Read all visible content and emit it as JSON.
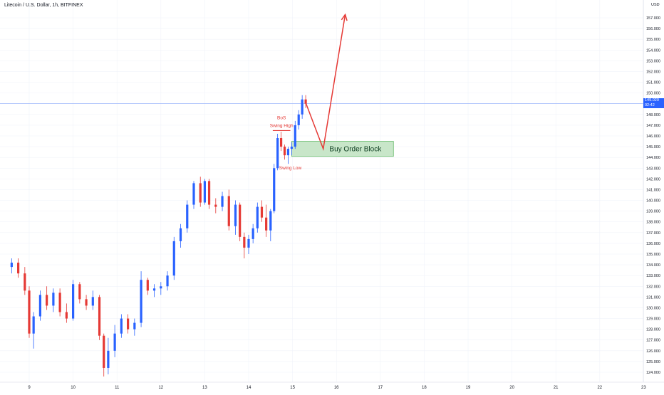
{
  "header": {
    "title": "Litecoin / U.S. Dollar, 1h, BITFINEX"
  },
  "price_tag": {
    "price": "149.020",
    "countdown": "02:42",
    "currency": "USD"
  },
  "annotations": {
    "bos": "BoS",
    "swing_high": "Swing High",
    "swing_low": "Swing Low",
    "zone": "Buy Order Block"
  },
  "colors": {
    "up": "#2962ff",
    "down": "#e53935",
    "zone_fill": "#c8e6c9",
    "zone_border": "#66bb6a",
    "arrow": "#e53935",
    "price_line": "#2962ff"
  },
  "chart_data": {
    "type": "candlestick",
    "title": "Litecoin / U.S. Dollar, 1h, BITFINEX",
    "xlabel": "",
    "ylabel": "",
    "ylim": [
      123.2,
      158.0
    ],
    "x_ticks": [
      "9",
      "10",
      "11",
      "12",
      "13",
      "14",
      "15",
      "16",
      "17",
      "18",
      "19",
      "20",
      "21",
      "22",
      "23"
    ],
    "y_ticks": [
      124.0,
      125.0,
      126.0,
      127.0,
      128.0,
      129.0,
      130.0,
      131.0,
      132.0,
      133.0,
      134.0,
      135.0,
      136.0,
      137.0,
      138.0,
      139.0,
      140.0,
      141.0,
      142.0,
      143.0,
      144.0,
      145.0,
      146.0,
      147.0,
      148.0,
      149.0,
      150.0,
      151.0,
      152.0,
      153.0,
      154.0,
      155.0,
      156.0,
      157.0
    ],
    "last_price": 149.02,
    "candles": [
      {
        "t": 8.6,
        "o": 133.8,
        "h": 134.6,
        "l": 133.2,
        "c": 134.2
      },
      {
        "t": 8.75,
        "o": 134.2,
        "h": 134.6,
        "l": 132.8,
        "c": 133.2
      },
      {
        "t": 8.9,
        "o": 133.2,
        "h": 133.8,
        "l": 131.2,
        "c": 131.6
      },
      {
        "t": 9.0,
        "o": 131.6,
        "h": 132.0,
        "l": 127.2,
        "c": 127.6
      },
      {
        "t": 9.1,
        "o": 127.6,
        "h": 129.6,
        "l": 126.2,
        "c": 129.2
      },
      {
        "t": 9.25,
        "o": 129.2,
        "h": 131.6,
        "l": 128.8,
        "c": 131.2
      },
      {
        "t": 9.4,
        "o": 131.2,
        "h": 132.0,
        "l": 129.8,
        "c": 130.2
      },
      {
        "t": 9.55,
        "o": 130.2,
        "h": 131.8,
        "l": 129.6,
        "c": 131.4
      },
      {
        "t": 9.7,
        "o": 131.4,
        "h": 131.8,
        "l": 129.2,
        "c": 129.6
      },
      {
        "t": 9.85,
        "o": 129.6,
        "h": 130.4,
        "l": 128.6,
        "c": 129.0
      },
      {
        "t": 10.0,
        "o": 129.0,
        "h": 132.6,
        "l": 128.8,
        "c": 132.2
      },
      {
        "t": 10.15,
        "o": 132.2,
        "h": 132.4,
        "l": 130.4,
        "c": 130.8
      },
      {
        "t": 10.3,
        "o": 130.8,
        "h": 131.2,
        "l": 129.8,
        "c": 130.2
      },
      {
        "t": 10.45,
        "o": 130.2,
        "h": 131.6,
        "l": 129.8,
        "c": 131.0
      },
      {
        "t": 10.6,
        "o": 131.0,
        "h": 131.2,
        "l": 127.0,
        "c": 127.4
      },
      {
        "t": 10.7,
        "o": 127.4,
        "h": 127.6,
        "l": 123.6,
        "c": 124.4
      },
      {
        "t": 10.8,
        "o": 124.4,
        "h": 127.2,
        "l": 123.8,
        "c": 126.0
      },
      {
        "t": 10.95,
        "o": 126.0,
        "h": 128.4,
        "l": 125.4,
        "c": 127.6
      },
      {
        "t": 11.1,
        "o": 127.6,
        "h": 129.4,
        "l": 127.2,
        "c": 129.0
      },
      {
        "t": 11.25,
        "o": 129.0,
        "h": 129.4,
        "l": 127.6,
        "c": 128.0
      },
      {
        "t": 11.4,
        "o": 128.0,
        "h": 129.0,
        "l": 127.4,
        "c": 128.6
      },
      {
        "t": 11.55,
        "o": 128.6,
        "h": 133.4,
        "l": 128.2,
        "c": 132.6
      },
      {
        "t": 11.7,
        "o": 132.6,
        "h": 132.8,
        "l": 131.2,
        "c": 131.6
      },
      {
        "t": 11.85,
        "o": 131.6,
        "h": 132.2,
        "l": 131.0,
        "c": 131.8
      },
      {
        "t": 12.0,
        "o": 131.8,
        "h": 132.4,
        "l": 131.2,
        "c": 132.0
      },
      {
        "t": 12.15,
        "o": 132.0,
        "h": 133.4,
        "l": 131.6,
        "c": 133.0
      },
      {
        "t": 12.3,
        "o": 133.0,
        "h": 136.6,
        "l": 132.6,
        "c": 136.2
      },
      {
        "t": 12.45,
        "o": 136.2,
        "h": 137.8,
        "l": 135.6,
        "c": 137.4
      },
      {
        "t": 12.6,
        "o": 137.4,
        "h": 140.0,
        "l": 137.0,
        "c": 139.6
      },
      {
        "t": 12.75,
        "o": 139.6,
        "h": 141.8,
        "l": 139.2,
        "c": 141.6
      },
      {
        "t": 12.9,
        "o": 141.6,
        "h": 142.2,
        "l": 139.4,
        "c": 139.8
      },
      {
        "t": 13.0,
        "o": 139.8,
        "h": 142.0,
        "l": 139.6,
        "c": 141.8
      },
      {
        "t": 13.1,
        "o": 141.8,
        "h": 142.0,
        "l": 139.2,
        "c": 139.6
      },
      {
        "t": 13.25,
        "o": 139.6,
        "h": 140.2,
        "l": 138.8,
        "c": 139.4
      },
      {
        "t": 13.4,
        "o": 139.4,
        "h": 140.8,
        "l": 139.0,
        "c": 140.4
      },
      {
        "t": 13.55,
        "o": 140.4,
        "h": 141.0,
        "l": 137.2,
        "c": 137.6
      },
      {
        "t": 13.7,
        "o": 137.6,
        "h": 140.0,
        "l": 136.8,
        "c": 139.6
      },
      {
        "t": 13.8,
        "o": 139.6,
        "h": 139.8,
        "l": 136.2,
        "c": 136.6
      },
      {
        "t": 13.9,
        "o": 136.6,
        "h": 137.0,
        "l": 134.6,
        "c": 135.6
      },
      {
        "t": 14.0,
        "o": 135.6,
        "h": 136.8,
        "l": 135.0,
        "c": 136.4
      },
      {
        "t": 14.1,
        "o": 136.4,
        "h": 137.8,
        "l": 136.0,
        "c": 137.4
      },
      {
        "t": 14.2,
        "o": 137.4,
        "h": 139.8,
        "l": 137.0,
        "c": 139.4
      },
      {
        "t": 14.3,
        "o": 139.4,
        "h": 140.0,
        "l": 138.0,
        "c": 138.4
      },
      {
        "t": 14.4,
        "o": 138.4,
        "h": 139.6,
        "l": 136.6,
        "c": 137.2
      },
      {
        "t": 14.5,
        "o": 137.2,
        "h": 139.2,
        "l": 136.2,
        "c": 139.0
      },
      {
        "t": 14.58,
        "o": 139.0,
        "h": 143.4,
        "l": 138.8,
        "c": 143.0
      },
      {
        "t": 14.66,
        "o": 143.0,
        "h": 146.2,
        "l": 142.8,
        "c": 145.8
      },
      {
        "t": 14.74,
        "o": 145.8,
        "h": 146.4,
        "l": 144.6,
        "c": 145.0
      },
      {
        "t": 14.82,
        "o": 145.0,
        "h": 145.2,
        "l": 143.8,
        "c": 144.2
      },
      {
        "t": 14.9,
        "o": 144.2,
        "h": 145.0,
        "l": 143.4,
        "c": 144.8
      },
      {
        "t": 14.98,
        "o": 144.8,
        "h": 145.4,
        "l": 144.2,
        "c": 145.0
      },
      {
        "t": 15.06,
        "o": 145.0,
        "h": 147.4,
        "l": 144.8,
        "c": 147.0
      },
      {
        "t": 15.14,
        "o": 147.0,
        "h": 148.4,
        "l": 146.6,
        "c": 148.0
      },
      {
        "t": 15.22,
        "o": 148.0,
        "h": 149.8,
        "l": 147.6,
        "c": 149.4
      },
      {
        "t": 15.3,
        "o": 149.4,
        "h": 149.8,
        "l": 148.6,
        "c": 149.0
      }
    ],
    "order_block": {
      "x_start": 14.98,
      "x_end": 17.3,
      "y_low": 144.1,
      "y_high": 145.5,
      "label": "Buy Order Block"
    },
    "bos_line": {
      "x_start": 14.55,
      "x_end": 14.95,
      "y": 146.5
    },
    "projection": [
      {
        "x": 15.3,
        "y": 149.1
      },
      {
        "x": 15.7,
        "y": 144.8
      },
      {
        "x": 16.2,
        "y": 157.3
      }
    ]
  }
}
